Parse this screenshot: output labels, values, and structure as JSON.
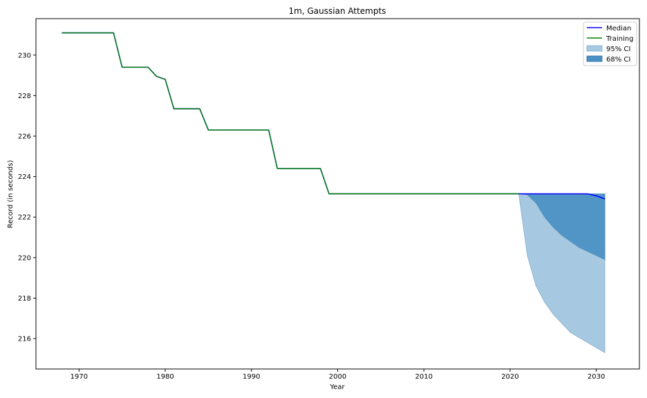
{
  "chart_data": {
    "type": "line",
    "title": "1m, Gaussian Attempts",
    "xlabel": "Year",
    "ylabel": "Record (in seconds)",
    "xlim": [
      1965,
      2035
    ],
    "ylim": [
      214.5,
      231.8
    ],
    "xticks": [
      1970,
      1980,
      1990,
      2000,
      2010,
      2020,
      2030
    ],
    "yticks": [
      216,
      218,
      220,
      222,
      224,
      226,
      228,
      230
    ],
    "grid": false,
    "legend_position": "top-right",
    "colors": {
      "median": "#0000ff",
      "training": "#008000",
      "ci95": "#a6c8e0",
      "ci68": "#4a90c4",
      "ci_edge": "#2d6fa8"
    },
    "series": [
      {
        "name": "Training",
        "x": [
          1968,
          1974,
          1975,
          1978,
          1979,
          1980,
          1981,
          1984,
          1985,
          1992,
          1993,
          1998,
          1999,
          2021
        ],
        "values": [
          231.1,
          231.1,
          229.4,
          229.4,
          228.95,
          228.8,
          227.35,
          227.35,
          226.3,
          226.3,
          224.4,
          224.4,
          223.15,
          223.15
        ]
      },
      {
        "name": "Median",
        "x": [
          1968,
          1974,
          1975,
          1978,
          1979,
          1980,
          1981,
          1984,
          1985,
          1992,
          1993,
          1998,
          1999,
          2021,
          2022,
          2023,
          2024,
          2025,
          2026,
          2027,
          2028,
          2029,
          2030,
          2031
        ],
        "values": [
          231.1,
          231.1,
          229.4,
          229.4,
          228.95,
          228.8,
          227.35,
          227.35,
          226.3,
          226.3,
          224.4,
          224.4,
          223.15,
          223.15,
          223.15,
          223.15,
          223.15,
          223.15,
          223.15,
          223.15,
          223.15,
          223.15,
          223.05,
          222.9
        ]
      },
      {
        "name": "95% CI",
        "type": "area",
        "x": [
          2021,
          2022,
          2023,
          2024,
          2025,
          2026,
          2027,
          2028,
          2029,
          2030,
          2031
        ],
        "upper": [
          223.15,
          223.15,
          223.15,
          223.15,
          223.15,
          223.15,
          223.15,
          223.15,
          223.15,
          223.15,
          223.15
        ],
        "lower": [
          223.15,
          220.1,
          218.6,
          217.8,
          217.2,
          216.75,
          216.3,
          216.05,
          215.8,
          215.55,
          215.3
        ]
      },
      {
        "name": "68% CI",
        "type": "area",
        "x": [
          2021,
          2022,
          2023,
          2024,
          2025,
          2026,
          2027,
          2028,
          2029,
          2030,
          2031
        ],
        "upper": [
          223.15,
          223.15,
          223.15,
          223.15,
          223.15,
          223.15,
          223.15,
          223.15,
          223.15,
          223.15,
          223.15
        ],
        "lower": [
          223.15,
          223.1,
          222.7,
          222.0,
          221.5,
          221.1,
          220.8,
          220.5,
          220.3,
          220.1,
          219.9
        ]
      }
    ],
    "legend": [
      "Median",
      "Training",
      "95% CI",
      "68% CI"
    ]
  }
}
